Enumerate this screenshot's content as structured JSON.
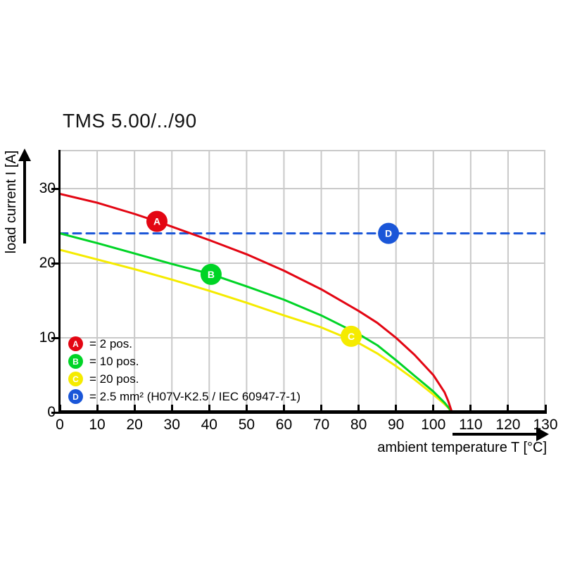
{
  "title": "TMS 5.00/../90",
  "x_axis": {
    "label": "ambient temperature T [°C]",
    "ticks": [
      0,
      10,
      20,
      30,
      40,
      50,
      60,
      70,
      80,
      90,
      100,
      110,
      120,
      130
    ]
  },
  "y_axis": {
    "label": "load current I [A]",
    "ticks": [
      0,
      10,
      20,
      30
    ]
  },
  "colors": {
    "red": "#e30613",
    "green": "#00d426",
    "yellow": "#f5eb00",
    "blue": "#1a56d8",
    "grid": "#c9c9c9",
    "axis": "#000000",
    "marker_letter": "#ffffff"
  },
  "legend": [
    {
      "letter": "A",
      "color": "#e30613",
      "label": "= 2 pos."
    },
    {
      "letter": "B",
      "color": "#00d426",
      "label": "= 10 pos."
    },
    {
      "letter": "C",
      "color": "#f5eb00",
      "label": "= 20 pos."
    },
    {
      "letter": "D",
      "color": "#1a56d8",
      "label": "= 2.5 mm² (H07V-K2.5 / IEC 60947-7-1)"
    }
  ],
  "chart_data": {
    "type": "line",
    "title": "TMS 5.00/../90",
    "xlabel": "ambient temperature T [°C]",
    "ylabel": "load current I [A]",
    "xlim": [
      0,
      130
    ],
    "ylim": [
      0,
      35.2
    ],
    "x_ticks": [
      0,
      10,
      20,
      30,
      40,
      50,
      60,
      70,
      80,
      90,
      100,
      110,
      120,
      130
    ],
    "y_ticks": [
      0,
      10,
      20,
      30
    ],
    "grid": true,
    "legend_position": "lower-left inside plot",
    "series": [
      {
        "name": "A",
        "label": "2 pos.",
        "color": "#e30613",
        "style": "solid",
        "marker": {
          "letter": "A",
          "x": 26,
          "y": 25.6
        },
        "points": [
          [
            0,
            29.3
          ],
          [
            10,
            28.1
          ],
          [
            20,
            26.6
          ],
          [
            26,
            25.6
          ],
          [
            30,
            24.9
          ],
          [
            40,
            23.1
          ],
          [
            50,
            21.2
          ],
          [
            60,
            19.0
          ],
          [
            70,
            16.5
          ],
          [
            80,
            13.6
          ],
          [
            85,
            12.0
          ],
          [
            90,
            10.0
          ],
          [
            95,
            7.7
          ],
          [
            100,
            5.0
          ],
          [
            103,
            2.7
          ],
          [
            104,
            1.5
          ],
          [
            105,
            0
          ]
        ]
      },
      {
        "name": "B",
        "label": "10 pos.",
        "color": "#00d426",
        "style": "solid",
        "marker": {
          "letter": "B",
          "x": 40.5,
          "y": 18.5
        },
        "points": [
          [
            0,
            24.0
          ],
          [
            10,
            22.7
          ],
          [
            20,
            21.3
          ],
          [
            30,
            19.9
          ],
          [
            40,
            18.6
          ],
          [
            50,
            16.9
          ],
          [
            60,
            15.1
          ],
          [
            70,
            13.0
          ],
          [
            80,
            10.5
          ],
          [
            85,
            9.0
          ],
          [
            90,
            7.0
          ],
          [
            95,
            4.9
          ],
          [
            100,
            2.8
          ],
          [
            103,
            1.3
          ],
          [
            104,
            0.7
          ],
          [
            105,
            0
          ]
        ]
      },
      {
        "name": "C",
        "label": "20 pos.",
        "color": "#f5eb00",
        "style": "solid",
        "marker": {
          "letter": "C",
          "x": 78,
          "y": 10.2
        },
        "points": [
          [
            0,
            21.8
          ],
          [
            10,
            20.5
          ],
          [
            20,
            19.2
          ],
          [
            30,
            17.8
          ],
          [
            40,
            16.3
          ],
          [
            50,
            14.7
          ],
          [
            60,
            13.0
          ],
          [
            70,
            11.4
          ],
          [
            80,
            9.3
          ],
          [
            85,
            7.9
          ],
          [
            90,
            6.2
          ],
          [
            95,
            4.4
          ],
          [
            100,
            2.4
          ],
          [
            103,
            1.1
          ],
          [
            104,
            0.6
          ],
          [
            105,
            0
          ]
        ]
      },
      {
        "name": "D",
        "label": "2.5 mm² (H07V-K2.5 / IEC 60947-7-1)",
        "color": "#1a56d8",
        "style": "dashed",
        "marker": {
          "letter": "D",
          "x": 88,
          "y": 24
        },
        "points": [
          [
            0,
            24
          ],
          [
            130,
            24
          ]
        ]
      }
    ]
  }
}
